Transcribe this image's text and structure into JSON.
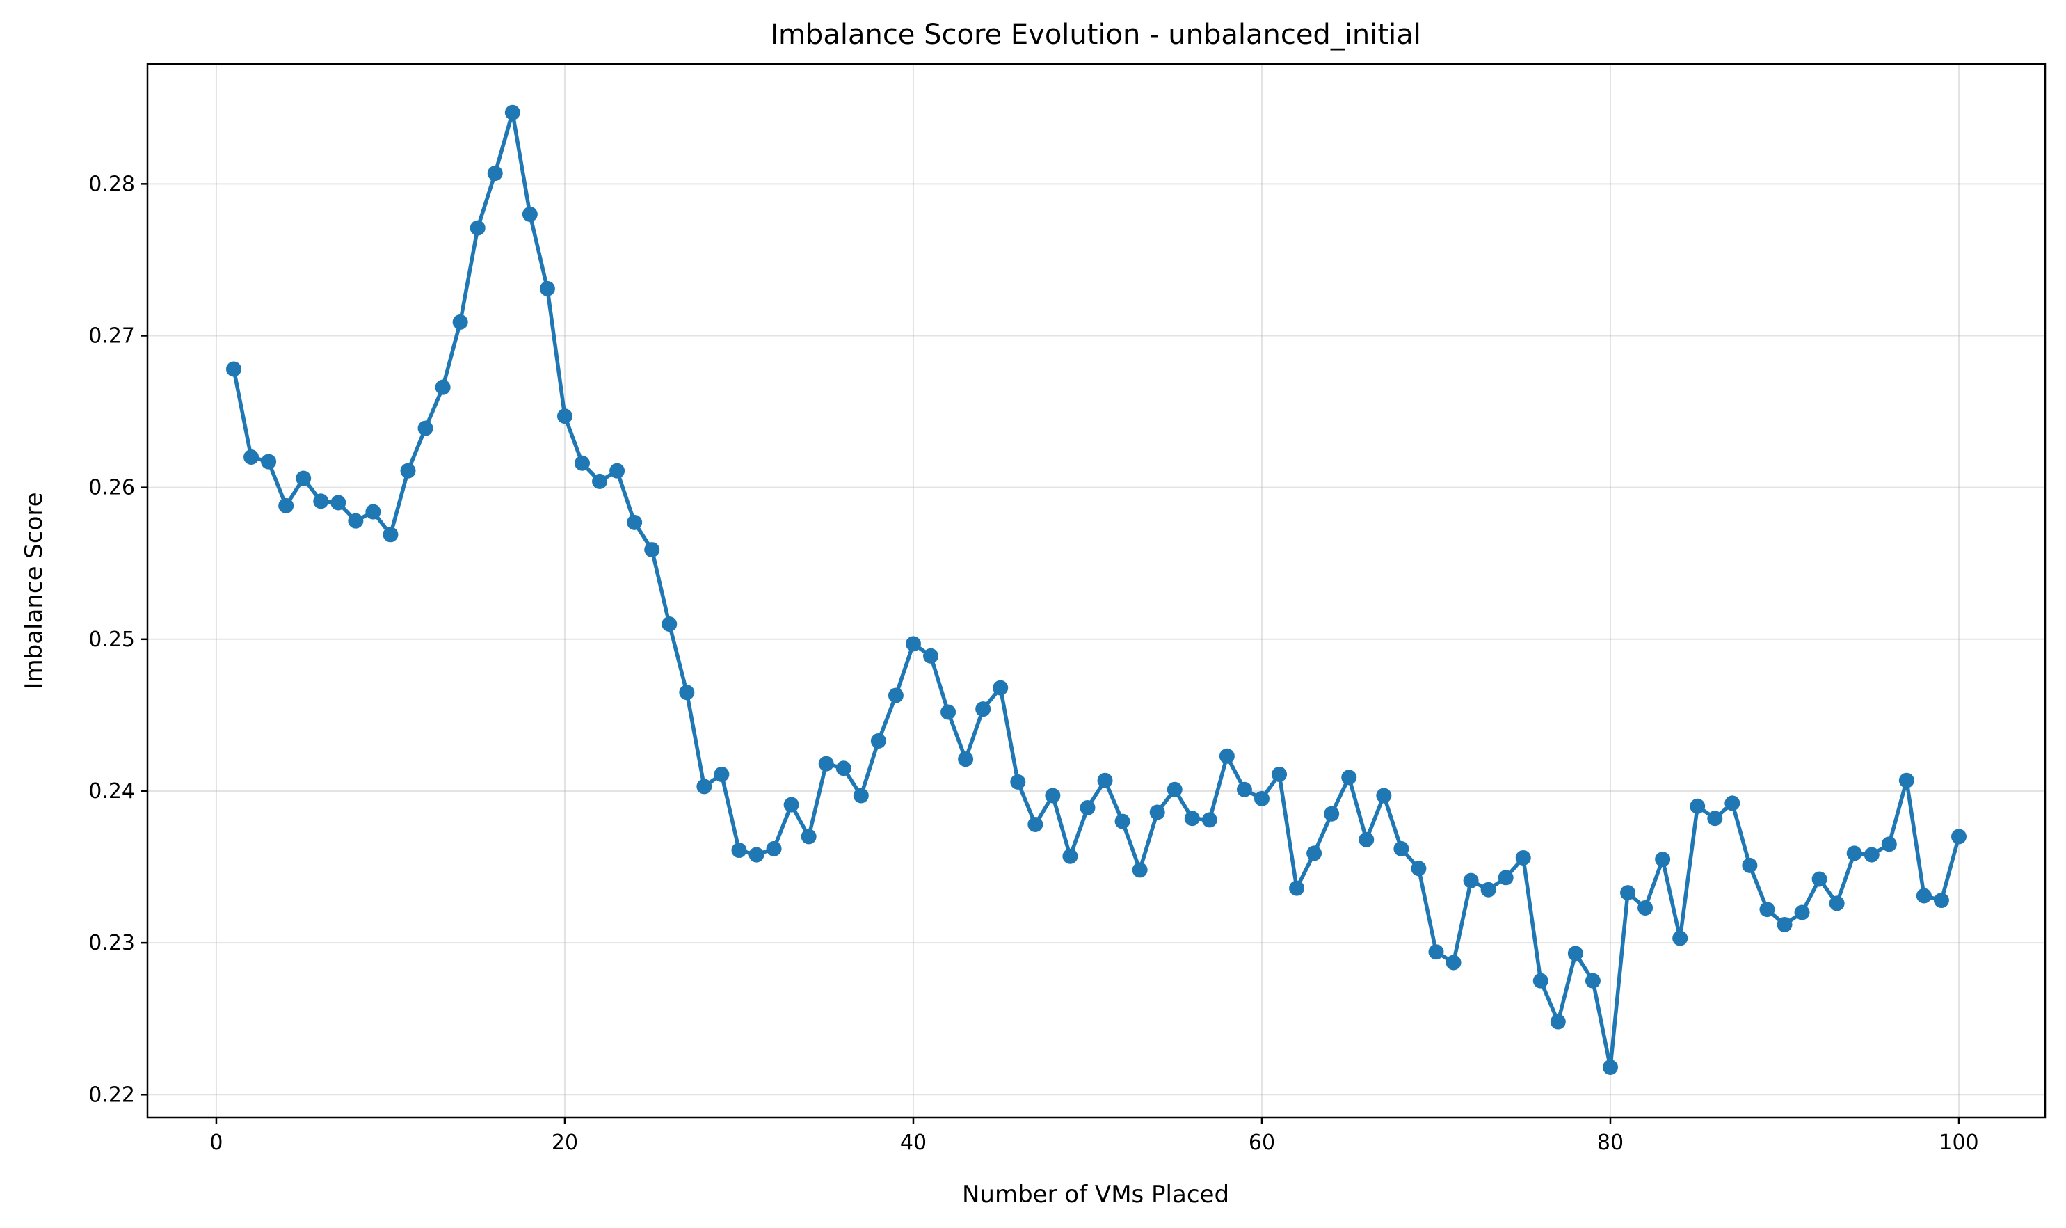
{
  "chart_data": {
    "type": "line",
    "title": "Imbalance Score Evolution - unbalanced_initial",
    "xlabel": "Number of VMs Placed",
    "ylabel": "Imbalance Score",
    "xlim": [
      -3.95,
      104.95
    ],
    "ylim": [
      0.2185,
      0.2879
    ],
    "xticks": [
      0,
      20,
      40,
      60,
      80,
      100
    ],
    "xtick_labels": [
      "0",
      "20",
      "40",
      "60",
      "80",
      "100"
    ],
    "yticks": [
      0.22,
      0.23,
      0.24,
      0.25,
      0.26,
      0.27,
      0.28
    ],
    "ytick_labels": [
      "0.22",
      "0.23",
      "0.24",
      "0.25",
      "0.26",
      "0.27",
      "0.28"
    ],
    "grid": true,
    "colors": {
      "series": "#1f77b4",
      "grid": "#b0b0b0",
      "frame": "#000000"
    },
    "marker": "circle",
    "series": [
      {
        "x": [
          1,
          2,
          3,
          4,
          5,
          6,
          7,
          8,
          9,
          10,
          11,
          12,
          13,
          14,
          15,
          16,
          17,
          18,
          19,
          20,
          21,
          22,
          23,
          24,
          25,
          26,
          27,
          28,
          29,
          30,
          31,
          32,
          33,
          34,
          35,
          36,
          37,
          38,
          39,
          40,
          41,
          42,
          43,
          44,
          45,
          46,
          47,
          48,
          49,
          50,
          51,
          52,
          53,
          54,
          55,
          56,
          57,
          58,
          59,
          60,
          61,
          62,
          63,
          64,
          65,
          66,
          67,
          68,
          69,
          70,
          71,
          72,
          73,
          74,
          75,
          76,
          77,
          78,
          79,
          80,
          81,
          82,
          83,
          84,
          85,
          86,
          87,
          88,
          89,
          90,
          91,
          92,
          93,
          94,
          95,
          96,
          97,
          98,
          99,
          100
        ],
        "values": [
          0.2678,
          0.262,
          0.2617,
          0.2588,
          0.2606,
          0.2591,
          0.259,
          0.2578,
          0.2584,
          0.2569,
          0.2611,
          0.2639,
          0.2666,
          0.2709,
          0.2771,
          0.2807,
          0.2847,
          0.278,
          0.2731,
          0.2647,
          0.2616,
          0.2604,
          0.2611,
          0.2577,
          0.2559,
          0.251,
          0.2465,
          0.2403,
          0.2411,
          0.2361,
          0.2358,
          0.2362,
          0.2391,
          0.237,
          0.2418,
          0.2415,
          0.2397,
          0.2433,
          0.2463,
          0.2497,
          0.2489,
          0.2452,
          0.2421,
          0.2454,
          0.2468,
          0.2406,
          0.2378,
          0.2397,
          0.2357,
          0.2389,
          0.2407,
          0.238,
          0.2348,
          0.2386,
          0.2401,
          0.2382,
          0.2381,
          0.2423,
          0.2401,
          0.2395,
          0.2411,
          0.2336,
          0.2359,
          0.2385,
          0.2409,
          0.2368,
          0.2397,
          0.2362,
          0.2349,
          0.2294,
          0.2287,
          0.2341,
          0.2335,
          0.2343,
          0.2356,
          0.2275,
          0.2248,
          0.2293,
          0.2275,
          0.2218,
          0.2333,
          0.2323,
          0.2355,
          0.2303,
          0.239,
          0.2382,
          0.2392,
          0.2351,
          0.2322,
          0.2312,
          0.232,
          0.2342,
          0.2326,
          0.2359,
          0.2358,
          0.2365,
          0.2407,
          0.2331,
          0.2328,
          0.237
        ]
      }
    ]
  }
}
